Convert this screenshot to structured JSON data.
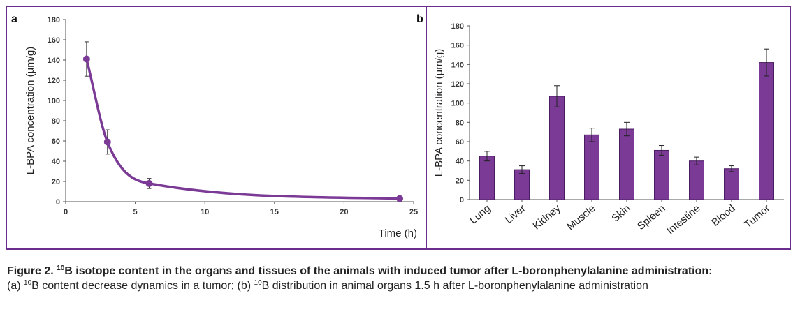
{
  "chart_data": [
    {
      "panel_label": "a",
      "type": "line",
      "xlabel": "Time (h)",
      "ylabel": "L-BPA concentration (µm/g)",
      "xlim": [
        0,
        25
      ],
      "ylim": [
        0,
        180
      ],
      "xticks": [
        0,
        5,
        10,
        15,
        20,
        25
      ],
      "yticks": [
        0,
        20,
        40,
        60,
        80,
        100,
        120,
        140,
        160,
        180
      ],
      "grid": false,
      "smooth": true,
      "color": "#7b3a96",
      "points": [
        {
          "x": 1.5,
          "y": 141,
          "err": 17
        },
        {
          "x": 3,
          "y": 59,
          "err": 12
        },
        {
          "x": 6,
          "y": 18,
          "err": 5
        },
        {
          "x": 24,
          "y": 3,
          "err": 0
        }
      ]
    },
    {
      "panel_label": "b",
      "type": "bar",
      "xlabel": "",
      "ylabel": "L-BPA concentration (µm/g)",
      "ylim": [
        0,
        180
      ],
      "yticks": [
        0,
        20,
        40,
        60,
        80,
        100,
        120,
        140,
        160,
        180
      ],
      "grid": false,
      "color": "#7b3a96",
      "categories": [
        "Lung",
        "Liver",
        "Kidney",
        "Muscle",
        "Skin",
        "Spleen",
        "Intestine",
        "Blood",
        "Tumor"
      ],
      "values": [
        45,
        31,
        107,
        67,
        73,
        51,
        40,
        32,
        142
      ],
      "errors": [
        5,
        4,
        11,
        7,
        7,
        5,
        4,
        3,
        14
      ]
    }
  ],
  "caption": {
    "figure_label": "Figure 2.",
    "title_sup": "10",
    "title_text": "B isotope content in the organs and tissues of the animals with induced tumor after L-boronphenylalanine administration:",
    "part_a_prefix": "(a)",
    "part_a_sup": "10",
    "part_a_text": "B content decrease dynamics in a tumor; (b)",
    "part_b_sup": "10",
    "part_b_text": "B distribution in animal organs 1.5 h after L-boronphenylalanine administration"
  }
}
